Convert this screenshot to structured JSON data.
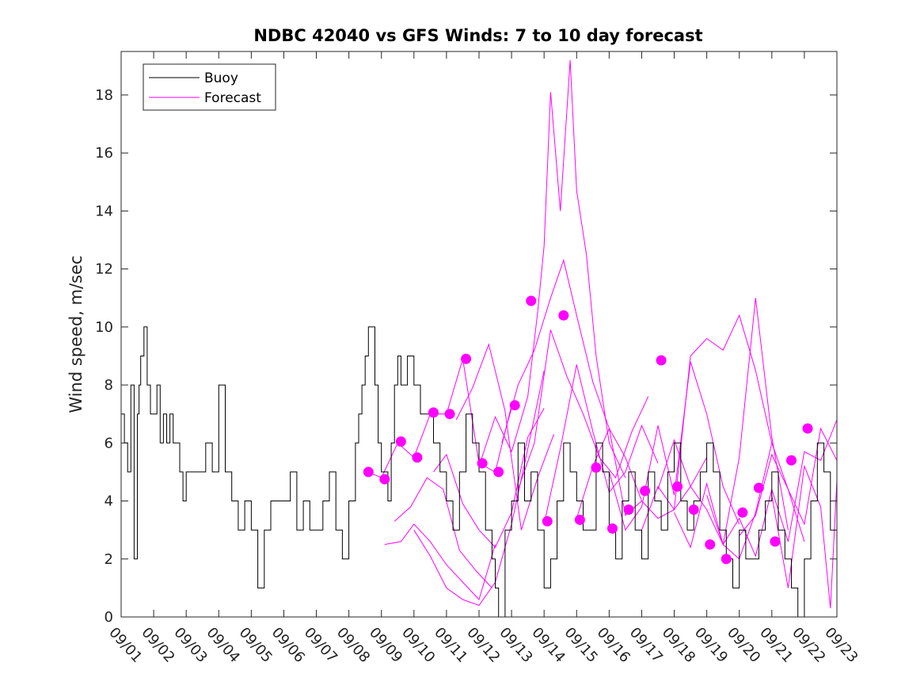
{
  "chart_data": {
    "type": "line",
    "title": "NDBC 42040 vs GFS Winds: 7 to 10 day forecast",
    "xlabel": "",
    "ylabel": "Wind speed, m/sec",
    "xlim": [
      0,
      22
    ],
    "ylim": [
      0,
      19.5
    ],
    "yticks": [
      0,
      2,
      4,
      6,
      8,
      10,
      12,
      14,
      16,
      18
    ],
    "xtick_values": [
      0,
      1,
      2,
      3,
      4,
      5,
      6,
      7,
      8,
      9,
      10,
      11,
      12,
      13,
      14,
      15,
      16,
      17,
      18,
      19,
      20,
      21,
      22
    ],
    "xtick_labels": [
      "09/01",
      "09/02",
      "09/03",
      "09/04",
      "09/05",
      "09/06",
      "09/07",
      "09/08",
      "09/09",
      "09/10",
      "09/11",
      "09/12",
      "09/13",
      "09/14",
      "09/15",
      "09/16",
      "09/17",
      "09/18",
      "09/19",
      "09/20",
      "09/21",
      "09/22",
      "09/23"
    ],
    "legend": {
      "position": "top-left",
      "entries": [
        "Buoy",
        "Forecast"
      ]
    },
    "colors": {
      "buoy": "#000000",
      "forecast": "#ff00ff"
    },
    "series": [
      {
        "name": "Buoy",
        "x": [
          0,
          0.1,
          0.2,
          0.3,
          0.4,
          0.5,
          0.55,
          0.6,
          0.7,
          0.8,
          0.9,
          1.0,
          1.1,
          1.2,
          1.3,
          1.4,
          1.5,
          1.6,
          1.7,
          1.8,
          1.9,
          2.0,
          2.2,
          2.4,
          2.6,
          2.8,
          3.0,
          3.2,
          3.4,
          3.6,
          3.8,
          4.0,
          4.2,
          4.4,
          4.6,
          4.8,
          5.0,
          5.2,
          5.4,
          5.6,
          5.8,
          6.0,
          6.2,
          6.4,
          6.6,
          6.8,
          7.0,
          7.2,
          7.3,
          7.4,
          7.5,
          7.6,
          7.7,
          7.8,
          7.9,
          8.0,
          8.1,
          8.2,
          8.3,
          8.4,
          8.5,
          8.6,
          8.8,
          9.0,
          9.2,
          9.4,
          9.6,
          9.8,
          10.0,
          10.2,
          10.4,
          10.6,
          10.8,
          11.0,
          11.2,
          11.4,
          11.5,
          11.6,
          11.8,
          12.0,
          12.2,
          12.4,
          12.6,
          12.8,
          13.0,
          13.2,
          13.4,
          13.6,
          13.8,
          14.0,
          14.2,
          14.4,
          14.6,
          14.8,
          15.0,
          15.2,
          15.4,
          15.6,
          15.8,
          16.0,
          16.2,
          16.4,
          16.6,
          16.8,
          17.0,
          17.2,
          17.4,
          17.6,
          17.8,
          18.0,
          18.2,
          18.4,
          18.6,
          18.8,
          19.0,
          19.2,
          19.4,
          19.6,
          19.8,
          20.0,
          20.2,
          20.4,
          20.6,
          20.8,
          21.0,
          21.2,
          21.4,
          21.6,
          21.8,
          22.0
        ],
        "y": [
          7,
          6,
          5,
          8,
          2,
          7,
          8,
          9,
          10,
          8,
          7,
          7,
          8,
          6,
          7,
          6,
          7,
          6,
          6,
          5,
          4,
          5,
          5,
          5,
          6,
          5,
          8,
          5,
          4,
          3,
          4,
          3,
          1,
          3,
          4,
          4,
          4,
          5,
          3,
          4,
          3,
          3,
          4,
          5,
          3,
          2,
          4,
          6,
          7,
          8,
          9,
          10,
          10,
          8,
          6,
          5,
          5,
          4,
          6,
          8,
          9,
          8,
          9,
          8,
          7,
          7,
          6,
          5,
          4,
          3,
          5,
          7,
          6,
          5,
          3,
          2,
          1,
          0,
          3,
          4,
          6,
          4,
          5,
          3,
          1,
          2,
          4,
          6,
          5,
          4,
          3,
          3,
          6,
          5,
          3,
          2,
          4,
          5,
          3,
          2,
          5,
          4,
          3,
          5,
          6,
          4,
          3,
          4,
          5,
          6,
          5,
          3,
          2,
          1,
          3,
          2,
          2,
          3,
          4,
          5,
          3,
          2,
          1,
          0,
          2,
          4,
          6,
          5,
          3,
          4
        ]
      },
      {
        "name": "Forecast",
        "lines": [
          {
            "x": [
              7.6,
              8.0,
              8.5,
              9.0,
              9.5,
              10.0,
              10.5,
              11.0,
              11.5,
              12.0
            ],
            "y": [
              5.0,
              4.8,
              6.0,
              5.5,
              7.0,
              7.0,
              8.9,
              5.3,
              5.0,
              7.3
            ]
          },
          {
            "x": [
              8.1,
              8.6,
              9.0,
              9.5,
              10.0,
              10.5,
              11.0,
              11.5
            ],
            "y": [
              2.5,
              2.6,
              3.2,
              2.6,
              1.8,
              1.2,
              0.6,
              2.5
            ]
          },
          {
            "x": [
              8.4,
              8.9,
              9.4,
              9.9,
              10.4,
              10.9,
              11.4
            ],
            "y": [
              3.3,
              3.8,
              4.8,
              4.4,
              2.3,
              1.6,
              1.0
            ]
          },
          {
            "x": [
              9.0,
              9.5,
              10.0,
              10.5,
              11.0,
              11.5,
              12.0,
              12.5,
              13.0
            ],
            "y": [
              3.0,
              2.1,
              1.0,
              0.6,
              0.4,
              1.2,
              3.2,
              5.8,
              8.5
            ]
          },
          {
            "x": [
              9.6,
              10.0,
              10.5,
              11.0,
              11.5,
              12.0,
              12.5,
              13.0
            ],
            "y": [
              5.0,
              5.6,
              3.9,
              3.0,
              2.4,
              3.6,
              6.2,
              7.2
            ]
          },
          {
            "x": [
              10.3,
              10.8,
              11.3,
              11.8,
              12.3,
              12.8,
              13.3
            ],
            "y": [
              6.8,
              7.9,
              9.4,
              7.1,
              3.0,
              4.8,
              6.3
            ]
          },
          {
            "x": [
              11.0,
              11.5,
              12.0,
              12.5,
              12.8,
              13.0,
              13.2,
              13.5,
              13.8,
              14.0,
              14.3,
              14.6,
              15.0,
              15.5
            ],
            "y": [
              5.2,
              6.9,
              5.7,
              7.6,
              10.5,
              12.8,
              18.1,
              14.0,
              19.2,
              14.7,
              12.5,
              9.0,
              6.0,
              4.8
            ]
          },
          {
            "x": [
              11.7,
              12.2,
              12.7,
              13.2,
              13.6,
              14.0,
              14.5,
              15.0,
              15.5,
              16.0
            ],
            "y": [
              6.0,
              8.0,
              9.2,
              11.0,
              12.3,
              10.4,
              8.1,
              6.5,
              3.5,
              4.0
            ]
          },
          {
            "x": [
              12.2,
              12.7,
              13.2,
              13.7,
              14.2,
              14.7,
              15.2,
              15.7,
              16.2
            ],
            "y": [
              4.4,
              6.0,
              9.9,
              8.3,
              7.0,
              5.5,
              4.8,
              6.4,
              7.6
            ]
          },
          {
            "x": [
              13.0,
              13.5,
              14.0,
              14.5,
              15.0,
              15.5,
              16.0,
              16.5
            ],
            "y": [
              3.2,
              5.8,
              8.7,
              6.4,
              4.3,
              5.0,
              6.6,
              5.3
            ]
          },
          {
            "x": [
              14.0,
              14.5,
              15.0,
              15.5,
              16.0,
              16.5,
              17.0,
              17.5,
              18.0
            ],
            "y": [
              3.4,
              5.2,
              6.5,
              5.5,
              4.0,
              3.4,
              3.7,
              4.5,
              5.5
            ]
          },
          {
            "x": [
              15.0,
              15.5,
              16.0,
              16.5,
              17.0,
              17.5,
              18.0,
              18.5,
              19.0
            ],
            "y": [
              5.0,
              3.0,
              3.8,
              6.6,
              4.2,
              8.8,
              7.0,
              4.5,
              3.2
            ]
          },
          {
            "x": [
              16.0,
              16.5,
              17.0,
              17.5,
              18.0,
              18.5,
              19.0,
              19.5,
              20.0
            ],
            "y": [
              3.0,
              4.5,
              3.7,
              9.0,
              9.6,
              9.2,
              10.4,
              8.5,
              6.0
            ]
          },
          {
            "x": [
              16.5,
              17.0,
              17.5,
              18.0,
              18.5,
              19.0,
              19.5,
              20.0,
              20.5
            ],
            "y": [
              4.4,
              6.1,
              4.5,
              3.7,
              2.5,
              5.5,
              11.0,
              6.2,
              3.0
            ]
          },
          {
            "x": [
              17.0,
              17.5,
              18.0,
              18.5,
              19.0,
              19.5,
              20.0,
              20.5,
              21.0
            ],
            "y": [
              3.6,
              2.4,
              4.6,
              2.5,
              2.0,
              3.6,
              6.0,
              4.4,
              2.6
            ]
          },
          {
            "x": [
              18.0,
              18.5,
              19.0,
              19.5,
              20.0,
              20.5,
              21.0,
              21.5,
              22.0
            ],
            "y": [
              4.2,
              2.5,
              3.4,
              2.1,
              4.4,
              2.6,
              5.7,
              5.4,
              6.8
            ]
          },
          {
            "x": [
              19.0,
              19.5,
              20.0,
              20.5,
              21.0,
              21.5,
              22.0
            ],
            "y": [
              2.8,
              3.5,
              5.6,
              4.4,
              3.2,
              6.5,
              5.4
            ]
          },
          {
            "x": [
              20.0,
              20.5,
              21.0,
              21.5,
              21.8,
              22.0
            ],
            "y": [
              4.2,
              1.0,
              5.2,
              3.8,
              0.3,
              4.7
            ]
          }
        ],
        "markers": [
          {
            "x": 7.6,
            "y": 5.0
          },
          {
            "x": 8.1,
            "y": 4.75
          },
          {
            "x": 8.6,
            "y": 6.05
          },
          {
            "x": 9.1,
            "y": 5.5
          },
          {
            "x": 9.6,
            "y": 7.05
          },
          {
            "x": 10.1,
            "y": 7.0
          },
          {
            "x": 10.6,
            "y": 8.9
          },
          {
            "x": 11.1,
            "y": 5.3
          },
          {
            "x": 11.6,
            "y": 5.0
          },
          {
            "x": 12.1,
            "y": 7.3
          },
          {
            "x": 12.6,
            "y": 10.9
          },
          {
            "x": 13.1,
            "y": 3.3
          },
          {
            "x": 13.6,
            "y": 10.4
          },
          {
            "x": 14.1,
            "y": 3.35
          },
          {
            "x": 14.6,
            "y": 5.15
          },
          {
            "x": 15.1,
            "y": 3.05
          },
          {
            "x": 15.6,
            "y": 3.7
          },
          {
            "x": 16.1,
            "y": 4.35
          },
          {
            "x": 16.6,
            "y": 8.85
          },
          {
            "x": 17.1,
            "y": 4.5
          },
          {
            "x": 17.6,
            "y": 3.7
          },
          {
            "x": 18.1,
            "y": 2.5
          },
          {
            "x": 18.6,
            "y": 2.0
          },
          {
            "x": 19.1,
            "y": 3.6
          },
          {
            "x": 19.6,
            "y": 4.45
          },
          {
            "x": 20.1,
            "y": 2.6
          },
          {
            "x": 20.6,
            "y": 5.4
          },
          {
            "x": 21.1,
            "y": 6.5
          }
        ]
      }
    ]
  }
}
